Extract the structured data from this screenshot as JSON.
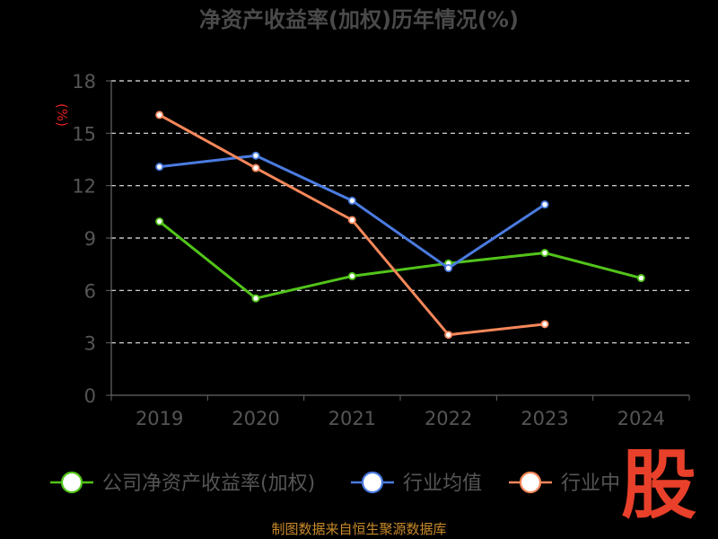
{
  "chart_data": {
    "type": "line",
    "title": "净资产收益率(加权)历年情况(%)",
    "ylabel": "(%)",
    "categories": [
      "2019",
      "2020",
      "2021",
      "2022",
      "2023",
      "2024"
    ],
    "ylim": [
      0,
      18
    ],
    "yticks": [
      0,
      3,
      6,
      9,
      12,
      15,
      18
    ],
    "grid": true,
    "legend_position": "bottom",
    "series": [
      {
        "name": "公司净资产收益率(加权)",
        "color": "#52c41a",
        "values": [
          9.95,
          5.55,
          6.82,
          7.55,
          8.15,
          6.71
        ]
      },
      {
        "name": "行业均值",
        "color": "#4a7be0",
        "values": [
          13.08,
          13.72,
          11.14,
          7.28,
          10.92,
          null
        ]
      },
      {
        "name": "行业中位数",
        "color": "#f6875a",
        "values": [
          16.05,
          13.01,
          10.03,
          3.46,
          4.07,
          null
        ]
      }
    ]
  },
  "legend_visible": [
    "公司净资产收益率(加权)",
    "行业均值",
    "行业中"
  ],
  "source": "制图数据来自恒生聚源数据库",
  "watermark": "股"
}
